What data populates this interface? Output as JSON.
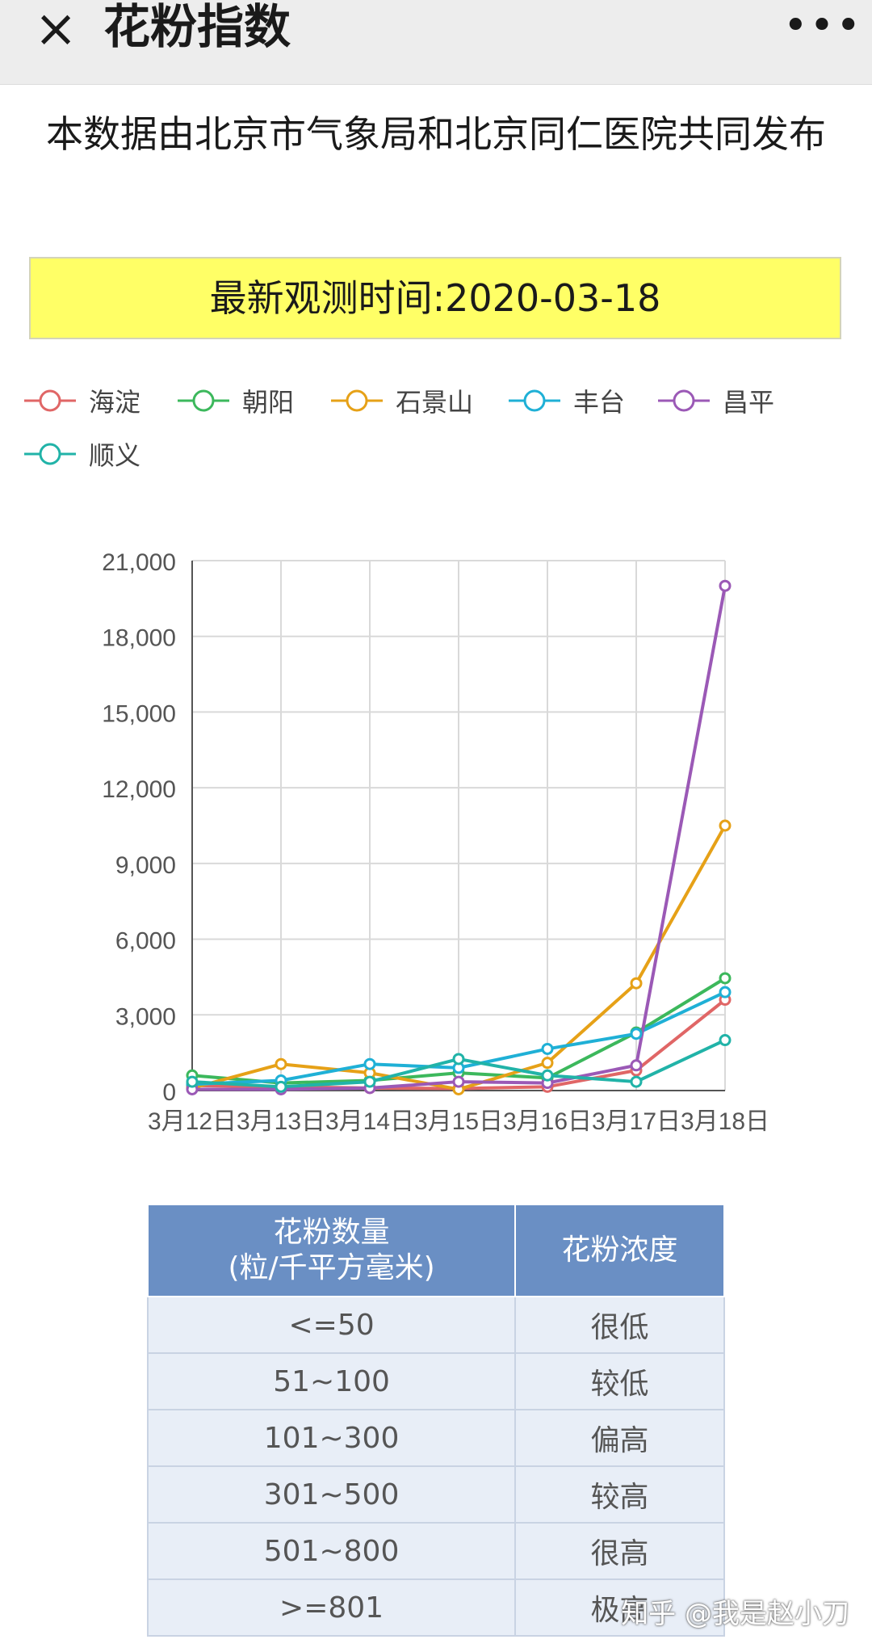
{
  "topbar": {
    "close_icon": "×",
    "title": "花粉指数",
    "more_icon": "•••"
  },
  "source_text": "本数据由北京市气象局和北京同仁医院共同发布",
  "observation": "最新观测时间:2020-03-18",
  "chart_data": {
    "type": "line",
    "categories": [
      "3月12日",
      "3月13日",
      "3月14日",
      "3月15日",
      "3月16日",
      "3月17日",
      "3月18日"
    ],
    "ylim": [
      0,
      21000
    ],
    "yticks": [
      0,
      3000,
      6000,
      9000,
      12000,
      15000,
      18000,
      21000
    ],
    "ytick_labels": [
      "0",
      "3,000",
      "6,000",
      "9,000",
      "12,000",
      "15,000",
      "18,000",
      "21,000"
    ],
    "grid": true,
    "legend_position": "top-left",
    "series": [
      {
        "name": "海淀",
        "color": "#e06666",
        "values": [
          200,
          150,
          100,
          80,
          150,
          800,
          3600
        ]
      },
      {
        "name": "朝阳",
        "color": "#3cb85c",
        "values": [
          600,
          300,
          400,
          700,
          500,
          2300,
          4450
        ]
      },
      {
        "name": "石景山",
        "color": "#e6a117",
        "values": [
          100,
          1050,
          700,
          50,
          1100,
          4250,
          10500
        ]
      },
      {
        "name": "丰台",
        "color": "#1fb0d6",
        "values": [
          250,
          400,
          1050,
          900,
          1650,
          2250,
          3900
        ]
      },
      {
        "name": "昌平",
        "color": "#9b59b6",
        "values": [
          50,
          50,
          100,
          350,
          300,
          1000,
          20000
        ]
      },
      {
        "name": "顺义",
        "color": "#21b3a8",
        "values": [
          350,
          150,
          350,
          1250,
          600,
          350,
          2000
        ]
      }
    ]
  },
  "pollen_table": {
    "headers": [
      "花粉数量\n(粒/千平方毫米)",
      "花粉浓度"
    ],
    "rows": [
      [
        "<=50",
        "很低"
      ],
      [
        "51~100",
        "较低"
      ],
      [
        "101~300",
        "偏高"
      ],
      [
        "301~500",
        "较高"
      ],
      [
        "501~800",
        "很高"
      ],
      [
        ">=801",
        "极高"
      ]
    ]
  },
  "watermark": "知乎 @我是赵小刀"
}
